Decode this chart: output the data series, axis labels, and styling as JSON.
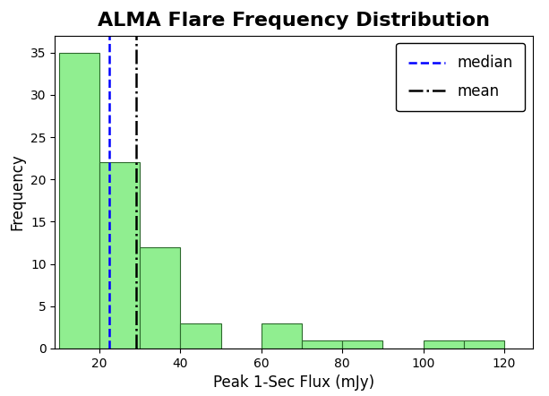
{
  "title": "ALMA Flare Frequency Distribution",
  "xlabel": "Peak 1-Sec Flux (mJy)",
  "ylabel": "Frequency",
  "bar_color": "#90EE90",
  "bar_edge_color": "#2d6a2d",
  "bin_edges": [
    10,
    20,
    30,
    40,
    50,
    60,
    70,
    80,
    90,
    100,
    110,
    120
  ],
  "frequencies": [
    35,
    22,
    12,
    3,
    0,
    3,
    1,
    1,
    0,
    1,
    1
  ],
  "median": 22.5,
  "mean": 29.0,
  "median_color": "#0000ff",
  "mean_color": "#000000",
  "ylim": [
    0,
    37
  ],
  "yticks": [
    0,
    5,
    10,
    15,
    20,
    25,
    30,
    35
  ],
  "xticks": [
    20,
    40,
    60,
    80,
    100,
    120
  ],
  "xlim_left": 9,
  "xlim_right": 127,
  "background_color": "#ffffff",
  "title_fontsize": 16,
  "axis_fontsize": 12,
  "legend_fontsize": 12
}
